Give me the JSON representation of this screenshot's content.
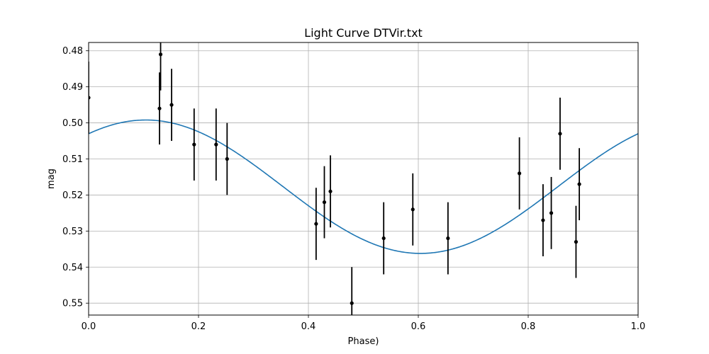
{
  "chart_data": {
    "type": "scatter",
    "title": "Light Curve DTVir.txt",
    "xlabel": "Phase)",
    "ylabel": "mag",
    "xlim": [
      0.0,
      1.0
    ],
    "ylim": [
      0.4777,
      0.5533
    ],
    "y_inverted": true,
    "grid": true,
    "xticks": [
      0.0,
      0.2,
      0.4,
      0.6,
      0.8,
      1.0
    ],
    "xtick_labels": [
      "0.0",
      "0.2",
      "0.4",
      "0.6",
      "0.8",
      "1.0"
    ],
    "yticks": [
      0.48,
      0.49,
      0.5,
      0.51,
      0.52,
      0.53,
      0.54,
      0.55
    ],
    "ytick_labels": [
      "0.48",
      "0.49",
      "0.50",
      "0.51",
      "0.52",
      "0.53",
      "0.54",
      "0.55"
    ],
    "series": [
      {
        "type": "errorbar",
        "color": "#000000",
        "points": [
          {
            "x": 0.0,
            "y": 0.493,
            "err": 0.01
          },
          {
            "x": 0.129,
            "y": 0.496,
            "err": 0.01
          },
          {
            "x": 0.131,
            "y": 0.481,
            "err": 0.01
          },
          {
            "x": 0.151,
            "y": 0.495,
            "err": 0.01
          },
          {
            "x": 0.192,
            "y": 0.506,
            "err": 0.01
          },
          {
            "x": 0.232,
            "y": 0.506,
            "err": 0.01
          },
          {
            "x": 0.252,
            "y": 0.51,
            "err": 0.01
          },
          {
            "x": 0.414,
            "y": 0.528,
            "err": 0.01
          },
          {
            "x": 0.429,
            "y": 0.522,
            "err": 0.01
          },
          {
            "x": 0.44,
            "y": 0.519,
            "err": 0.01
          },
          {
            "x": 0.479,
            "y": 0.55,
            "err": 0.01
          },
          {
            "x": 0.537,
            "y": 0.532,
            "err": 0.01
          },
          {
            "x": 0.59,
            "y": 0.524,
            "err": 0.01
          },
          {
            "x": 0.654,
            "y": 0.532,
            "err": 0.01
          },
          {
            "x": 0.784,
            "y": 0.514,
            "err": 0.01
          },
          {
            "x": 0.827,
            "y": 0.527,
            "err": 0.01
          },
          {
            "x": 0.842,
            "y": 0.525,
            "err": 0.01
          },
          {
            "x": 0.858,
            "y": 0.503,
            "err": 0.01
          },
          {
            "x": 0.887,
            "y": 0.533,
            "err": 0.01
          },
          {
            "x": 0.893,
            "y": 0.517,
            "err": 0.01
          }
        ]
      },
      {
        "type": "line",
        "color": "#1f77b4",
        "model": "sinusoid",
        "mean": 0.5177,
        "amplitude": 0.0185,
        "phase_of_maximum_brightness": 0.104
      }
    ]
  }
}
